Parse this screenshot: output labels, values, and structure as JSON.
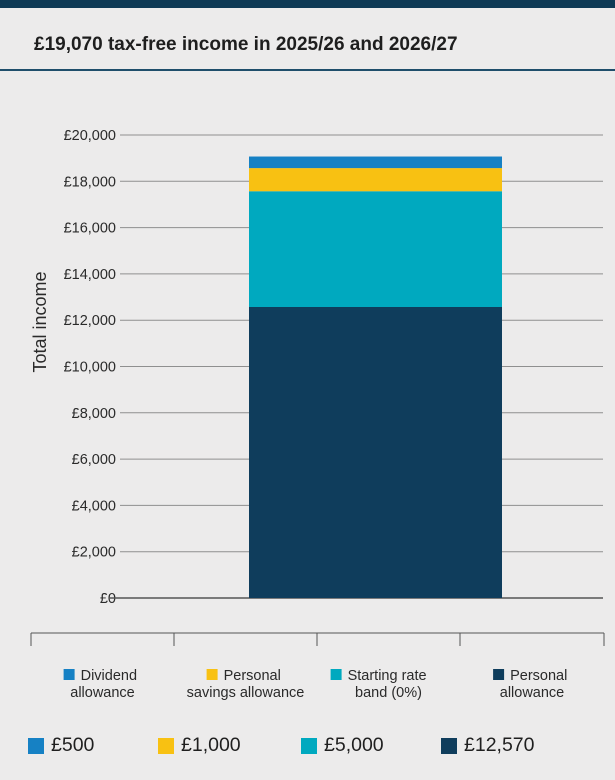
{
  "header": {
    "title": "£19,070 tax-free income in 2025/26 and 2026/27"
  },
  "chart_data": {
    "type": "bar",
    "stacked": true,
    "ylabel": "Total income",
    "ylim": [
      0,
      20000
    ],
    "yticks": [
      "£0",
      "£2,000",
      "£4,000",
      "£6,000",
      "£8,000",
      "£10,000",
      "£12,000",
      "£14,000",
      "£16,000",
      "£18,000",
      "£20,000"
    ],
    "ytick_values": [
      0,
      2000,
      4000,
      6000,
      8000,
      10000,
      12000,
      14000,
      16000,
      18000,
      20000
    ],
    "grid": true,
    "series": [
      {
        "name": "Personal allowance",
        "value": 12570,
        "color": "#0f3d5c"
      },
      {
        "name": "Starting rate band (0%)",
        "value": 5000,
        "color": "#00a9bf"
      },
      {
        "name": "Personal savings allowance",
        "value": 1000,
        "color": "#f8c112"
      },
      {
        "name": "Dividend allowance",
        "value": 500,
        "color": "#1681c4"
      }
    ],
    "category_labels": [
      {
        "lines": [
          "Dividend",
          "allowance"
        ],
        "color": "#1681c4"
      },
      {
        "lines": [
          "Personal",
          "savings allowance"
        ],
        "color": "#f8c112"
      },
      {
        "lines": [
          "Starting rate",
          "band (0%)"
        ],
        "color": "#00a9bf"
      },
      {
        "lines": [
          "Personal",
          "allowance"
        ],
        "color": "#0f3d5c"
      }
    ]
  },
  "legend": [
    {
      "label": "£500",
      "color": "#1681c4"
    },
    {
      "label": "£1,000",
      "color": "#f8c112"
    },
    {
      "label": "£5,000",
      "color": "#00a9bf"
    },
    {
      "label": "£12,570",
      "color": "#0f3d5c"
    }
  ]
}
